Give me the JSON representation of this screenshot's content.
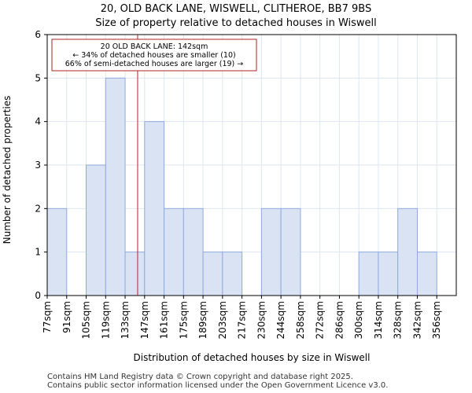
{
  "chart_data": {
    "type": "bar",
    "title": "20, OLD BACK LANE, WISWELL, CLITHEROE, BB7 9BS",
    "subtitle": "Size of property relative to detached houses in Wiswell",
    "xlabel": "Distribution of detached houses by size in Wiswell",
    "ylabel": "Number of detached properties",
    "categories": [
      "77sqm",
      "91sqm",
      "105sqm",
      "119sqm",
      "133sqm",
      "147sqm",
      "161sqm",
      "175sqm",
      "189sqm",
      "203sqm",
      "217sqm",
      "230sqm",
      "244sqm",
      "258sqm",
      "272sqm",
      "286sqm",
      "300sqm",
      "314sqm",
      "328sqm",
      "342sqm",
      "356sqm"
    ],
    "values": [
      2,
      0,
      3,
      5,
      1,
      4,
      2,
      2,
      1,
      1,
      0,
      2,
      2,
      0,
      0,
      0,
      1,
      1,
      2,
      1,
      0
    ],
    "ylim": [
      0,
      6
    ],
    "yticks": [
      0,
      1,
      2,
      3,
      4,
      5,
      6
    ],
    "grid": true,
    "marker": {
      "value_sqm": 142
    },
    "annotation": {
      "line1": "20 OLD BACK LANE: 142sqm",
      "line2": "← 34% of detached houses are smaller (10)",
      "line3": "66% of semi-detached houses are larger (19) →"
    },
    "colors": {
      "bar_fill": "#dae3f3",
      "bar_edge": "#8faadc",
      "marker": "#b22222",
      "grid": "#dee6f2"
    }
  },
  "footer": {
    "line1": "Contains HM Land Registry data © Crown copyright and database right 2025.",
    "line2": "Contains public sector information licensed under the Open Government Licence v3.0."
  }
}
